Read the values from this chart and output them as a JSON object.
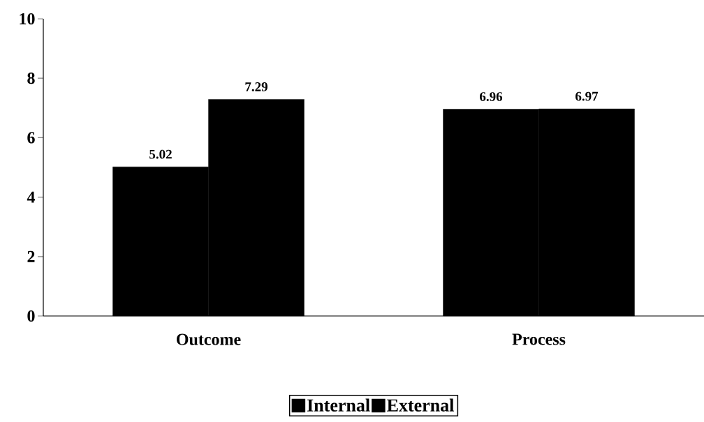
{
  "chart_data": {
    "type": "bar",
    "categories": [
      "Outcome",
      "Process"
    ],
    "series": [
      {
        "name": "Internal",
        "color": "#000000",
        "values": [
          5.02,
          6.96
        ]
      },
      {
        "name": "External",
        "color": "#000000",
        "values": [
          7.29,
          6.97
        ]
      }
    ],
    "ylim": [
      0,
      10
    ],
    "yticks": [
      0,
      2,
      4,
      6,
      8,
      10
    ],
    "data_labels": true,
    "legend": "bottom",
    "grid": false
  }
}
